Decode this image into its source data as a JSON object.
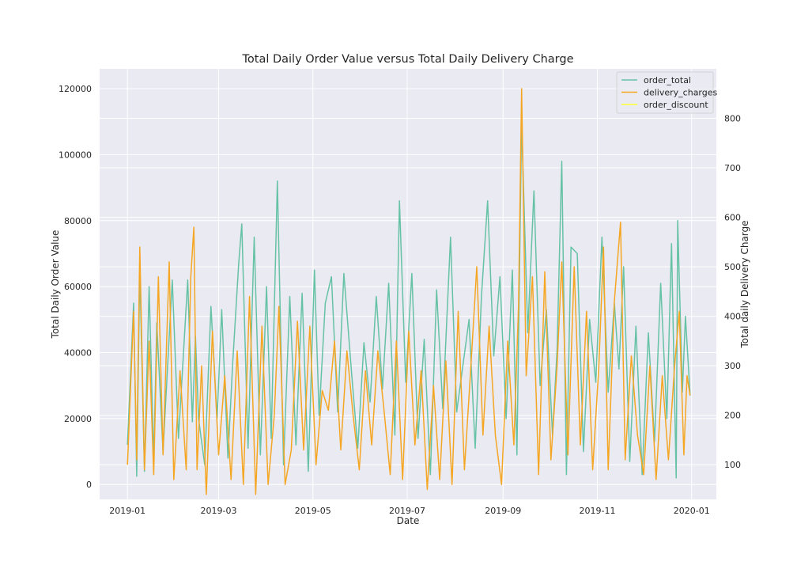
{
  "chart_data": {
    "type": "line",
    "title": "Total Daily Order Value versus Total Daily Delivery Charge",
    "xlabel": "Date",
    "ylabel_left": "Total Daily Order Value",
    "ylabel_right": "Total daily Delivery Charge",
    "x_ticks": [
      "2019-01",
      "2019-03",
      "2019-05",
      "2019-07",
      "2019-09",
      "2019-11",
      "2020-01"
    ],
    "x_range": [
      "2018-12-14",
      "2020-01-17"
    ],
    "y_left_ticks": [
      "0",
      "20000",
      "40000",
      "60000",
      "80000",
      "100000",
      "120000"
    ],
    "y_left_range": [
      -4500,
      126000
    ],
    "y_right_ticks": [
      "100",
      "200",
      "300",
      "400",
      "500",
      "600",
      "700",
      "800"
    ],
    "y_right_range": [
      30,
      900
    ],
    "grid": true,
    "legend_position": "top-right",
    "background": "#eaeaf2",
    "series": [
      {
        "name": "order_total",
        "axis": "left",
        "color": "#66c2a5",
        "points": [
          [
            "2019-01-01",
            12000
          ],
          [
            "2019-01-05",
            55000
          ],
          [
            "2019-01-07",
            2500
          ],
          [
            "2019-01-09",
            65000
          ],
          [
            "2019-01-12",
            4000
          ],
          [
            "2019-01-15",
            60000
          ],
          [
            "2019-01-18",
            7000
          ],
          [
            "2019-01-20",
            49000
          ],
          [
            "2019-01-24",
            10000
          ],
          [
            "2019-01-27",
            36000
          ],
          [
            "2019-01-30",
            62000
          ],
          [
            "2019-02-03",
            14000
          ],
          [
            "2019-02-06",
            38000
          ],
          [
            "2019-02-09",
            62000
          ],
          [
            "2019-02-12",
            19000
          ],
          [
            "2019-02-14",
            45000
          ],
          [
            "2019-02-16",
            20000
          ],
          [
            "2019-02-20",
            6000
          ],
          [
            "2019-02-24",
            54000
          ],
          [
            "2019-02-28",
            20000
          ],
          [
            "2019-03-03",
            53000
          ],
          [
            "2019-03-07",
            8000
          ],
          [
            "2019-03-10",
            36000
          ],
          [
            "2019-03-14",
            67000
          ],
          [
            "2019-03-16",
            79000
          ],
          [
            "2019-03-20",
            11000
          ],
          [
            "2019-03-24",
            75000
          ],
          [
            "2019-03-28",
            9000
          ],
          [
            "2019-04-01",
            60000
          ],
          [
            "2019-04-04",
            14000
          ],
          [
            "2019-04-08",
            92000
          ],
          [
            "2019-04-12",
            6000
          ],
          [
            "2019-04-16",
            57000
          ],
          [
            "2019-04-20",
            12000
          ],
          [
            "2019-04-24",
            58000
          ],
          [
            "2019-04-28",
            4000
          ],
          [
            "2019-05-02",
            65000
          ],
          [
            "2019-05-05",
            21000
          ],
          [
            "2019-05-09",
            55000
          ],
          [
            "2019-05-13",
            63000
          ],
          [
            "2019-05-17",
            22000
          ],
          [
            "2019-05-21",
            64000
          ],
          [
            "2019-05-26",
            34000
          ],
          [
            "2019-05-30",
            11000
          ],
          [
            "2019-06-03",
            43000
          ],
          [
            "2019-06-07",
            25000
          ],
          [
            "2019-06-11",
            57000
          ],
          [
            "2019-06-15",
            29000
          ],
          [
            "2019-06-19",
            61000
          ],
          [
            "2019-06-23",
            15000
          ],
          [
            "2019-06-26",
            86000
          ],
          [
            "2019-06-30",
            31000
          ],
          [
            "2019-07-04",
            64000
          ],
          [
            "2019-07-08",
            14000
          ],
          [
            "2019-07-12",
            44000
          ],
          [
            "2019-07-16",
            3000
          ],
          [
            "2019-07-20",
            59000
          ],
          [
            "2019-07-24",
            23000
          ],
          [
            "2019-07-29",
            75000
          ],
          [
            "2019-08-02",
            22000
          ],
          [
            "2019-08-06",
            36000
          ],
          [
            "2019-08-10",
            50000
          ],
          [
            "2019-08-14",
            11000
          ],
          [
            "2019-08-18",
            57000
          ],
          [
            "2019-08-22",
            86000
          ],
          [
            "2019-08-26",
            39000
          ],
          [
            "2019-08-30",
            63000
          ],
          [
            "2019-09-03",
            20000
          ],
          [
            "2019-09-07",
            65000
          ],
          [
            "2019-09-10",
            9000
          ],
          [
            "2019-09-13",
            110000
          ],
          [
            "2019-09-17",
            46000
          ],
          [
            "2019-09-21",
            89000
          ],
          [
            "2019-09-25",
            30000
          ],
          [
            "2019-09-29",
            53000
          ],
          [
            "2019-10-03",
            15000
          ],
          [
            "2019-10-06",
            41000
          ],
          [
            "2019-10-09",
            98000
          ],
          [
            "2019-10-12",
            3000
          ],
          [
            "2019-10-15",
            72000
          ],
          [
            "2019-10-19",
            70000
          ],
          [
            "2019-10-23",
            10000
          ],
          [
            "2019-10-27",
            50000
          ],
          [
            "2019-10-31",
            31000
          ],
          [
            "2019-11-04",
            75000
          ],
          [
            "2019-11-08",
            28000
          ],
          [
            "2019-11-12",
            55000
          ],
          [
            "2019-11-15",
            35000
          ],
          [
            "2019-11-18",
            66000
          ],
          [
            "2019-11-22",
            7000
          ],
          [
            "2019-11-26",
            48000
          ],
          [
            "2019-11-30",
            3000
          ],
          [
            "2019-12-04",
            46000
          ],
          [
            "2019-12-08",
            13000
          ],
          [
            "2019-12-12",
            61000
          ],
          [
            "2019-12-16",
            20000
          ],
          [
            "2019-12-19",
            73000
          ],
          [
            "2019-12-22",
            2000
          ],
          [
            "2019-12-23",
            80000
          ],
          [
            "2019-12-26",
            28000
          ],
          [
            "2019-12-28",
            51000
          ],
          [
            "2019-12-31",
            27000
          ]
        ]
      },
      {
        "name": "delivery_charges",
        "axis": "right",
        "color": "#f5a623",
        "points": [
          [
            "2019-01-01",
            100
          ],
          [
            "2019-01-05",
            410
          ],
          [
            "2019-01-07",
            110
          ],
          [
            "2019-01-09",
            540
          ],
          [
            "2019-01-12",
            90
          ],
          [
            "2019-01-15",
            350
          ],
          [
            "2019-01-18",
            80
          ],
          [
            "2019-01-21",
            480
          ],
          [
            "2019-01-24",
            120
          ],
          [
            "2019-01-28",
            510
          ],
          [
            "2019-01-31",
            70
          ],
          [
            "2019-02-04",
            290
          ],
          [
            "2019-02-08",
            90
          ],
          [
            "2019-02-11",
            480
          ],
          [
            "2019-02-13",
            580
          ],
          [
            "2019-02-15",
            90
          ],
          [
            "2019-02-18",
            300
          ],
          [
            "2019-02-21",
            40
          ],
          [
            "2019-02-25",
            370
          ],
          [
            "2019-03-01",
            120
          ],
          [
            "2019-03-05",
            280
          ],
          [
            "2019-03-09",
            70
          ],
          [
            "2019-03-13",
            330
          ],
          [
            "2019-03-17",
            60
          ],
          [
            "2019-03-21",
            440
          ],
          [
            "2019-03-25",
            40
          ],
          [
            "2019-03-29",
            380
          ],
          [
            "2019-04-02",
            60
          ],
          [
            "2019-04-06",
            200
          ],
          [
            "2019-04-09",
            420
          ],
          [
            "2019-04-13",
            60
          ],
          [
            "2019-04-17",
            130
          ],
          [
            "2019-04-21",
            390
          ],
          [
            "2019-04-25",
            130
          ],
          [
            "2019-04-29",
            380
          ],
          [
            "2019-05-03",
            100
          ],
          [
            "2019-05-07",
            250
          ],
          [
            "2019-05-11",
            210
          ],
          [
            "2019-05-15",
            350
          ],
          [
            "2019-05-19",
            130
          ],
          [
            "2019-05-23",
            330
          ],
          [
            "2019-05-27",
            200
          ],
          [
            "2019-05-31",
            90
          ],
          [
            "2019-06-04",
            290
          ],
          [
            "2019-06-08",
            140
          ],
          [
            "2019-06-12",
            330
          ],
          [
            "2019-06-16",
            210
          ],
          [
            "2019-06-20",
            80
          ],
          [
            "2019-06-24",
            350
          ],
          [
            "2019-06-28",
            70
          ],
          [
            "2019-07-02",
            370
          ],
          [
            "2019-07-06",
            140
          ],
          [
            "2019-07-10",
            290
          ],
          [
            "2019-07-14",
            50
          ],
          [
            "2019-07-18",
            260
          ],
          [
            "2019-07-22",
            70
          ],
          [
            "2019-07-26",
            310
          ],
          [
            "2019-07-30",
            60
          ],
          [
            "2019-08-03",
            410
          ],
          [
            "2019-08-07",
            90
          ],
          [
            "2019-08-11",
            290
          ],
          [
            "2019-08-15",
            500
          ],
          [
            "2019-08-19",
            160
          ],
          [
            "2019-08-23",
            380
          ],
          [
            "2019-08-27",
            160
          ],
          [
            "2019-08-31",
            60
          ],
          [
            "2019-09-04",
            350
          ],
          [
            "2019-09-08",
            140
          ],
          [
            "2019-09-11",
            420
          ],
          [
            "2019-09-13",
            860
          ],
          [
            "2019-09-16",
            280
          ],
          [
            "2019-09-20",
            480
          ],
          [
            "2019-09-24",
            80
          ],
          [
            "2019-09-28",
            490
          ],
          [
            "2019-10-02",
            110
          ],
          [
            "2019-10-06",
            300
          ],
          [
            "2019-10-09",
            510
          ],
          [
            "2019-10-13",
            120
          ],
          [
            "2019-10-17",
            500
          ],
          [
            "2019-10-21",
            140
          ],
          [
            "2019-10-25",
            410
          ],
          [
            "2019-10-29",
            90
          ],
          [
            "2019-11-02",
            300
          ],
          [
            "2019-11-05",
            540
          ],
          [
            "2019-11-08",
            90
          ],
          [
            "2019-11-12",
            430
          ],
          [
            "2019-11-16",
            590
          ],
          [
            "2019-11-19",
            110
          ],
          [
            "2019-11-23",
            320
          ],
          [
            "2019-11-27",
            160
          ],
          [
            "2019-12-01",
            80
          ],
          [
            "2019-12-05",
            300
          ],
          [
            "2019-12-09",
            70
          ],
          [
            "2019-12-13",
            280
          ],
          [
            "2019-12-17",
            110
          ],
          [
            "2019-12-21",
            300
          ],
          [
            "2019-12-24",
            410
          ],
          [
            "2019-12-27",
            120
          ],
          [
            "2019-12-29",
            280
          ],
          [
            "2019-12-31",
            240
          ]
        ]
      },
      {
        "name": "order_discount",
        "axis": "left",
        "color": "#ffff33",
        "points": []
      }
    ]
  }
}
